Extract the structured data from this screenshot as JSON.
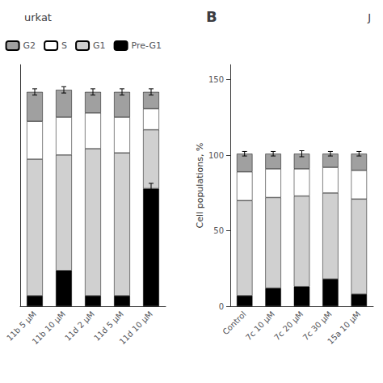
{
  "chart_data": [
    {
      "type": "bar",
      "stacked": true,
      "title": "urkat",
      "categories": [
        "11b 5 μM",
        "11b 10 μM",
        "11d 2 μM",
        "11d 5 μM",
        "11d 10 μM"
      ],
      "series": [
        {
          "name": "Pre-G1",
          "color": "#000000",
          "values": [
            5,
            17,
            5,
            5,
            56
          ],
          "errors": [
            null,
            null,
            null,
            null,
            2.5
          ]
        },
        {
          "name": "G1",
          "color": "#d0d0d0",
          "values": [
            65,
            55,
            70,
            68,
            28
          ]
        },
        {
          "name": "S",
          "color": "#ffffff",
          "values": [
            18,
            18,
            17,
            17,
            10
          ]
        },
        {
          "name": "G2",
          "color": "#a0a0a0",
          "values": [
            14,
            13,
            10,
            12,
            8
          ],
          "errors": [
            1.5,
            1.5,
            1.5,
            1.5,
            1.5
          ]
        }
      ],
      "ylim": [
        0,
        115
      ],
      "yticks": [],
      "tick_labels": "x",
      "grid": false,
      "legend": "upper right"
    },
    {
      "type": "bar",
      "stacked": true,
      "title": "B",
      "annotations": [
        "J"
      ],
      "categories": [
        "Control",
        "7c 10 μM",
        "7c 20 μM",
        "7c 30 μM",
        "15a 10 μM"
      ],
      "series": [
        {
          "name": "Pre-G1",
          "color": "#000000",
          "values": [
            7,
            12,
            13,
            18,
            8
          ]
        },
        {
          "name": "G1",
          "color": "#d0d0d0",
          "values": [
            63,
            60,
            60,
            57,
            63
          ]
        },
        {
          "name": "S",
          "color": "#ffffff",
          "values": [
            19,
            19,
            18,
            17,
            19
          ]
        },
        {
          "name": "G2",
          "color": "#a0a0a0",
          "values": [
            12,
            10,
            10,
            9,
            11
          ],
          "errors": [
            1.5,
            1.5,
            2.0,
            1.5,
            1.5
          ]
        }
      ],
      "ylim": [
        0,
        160
      ],
      "yticks": [
        0,
        50,
        100,
        150
      ],
      "ylabel": "Cell populations, %",
      "grid": false
    }
  ]
}
